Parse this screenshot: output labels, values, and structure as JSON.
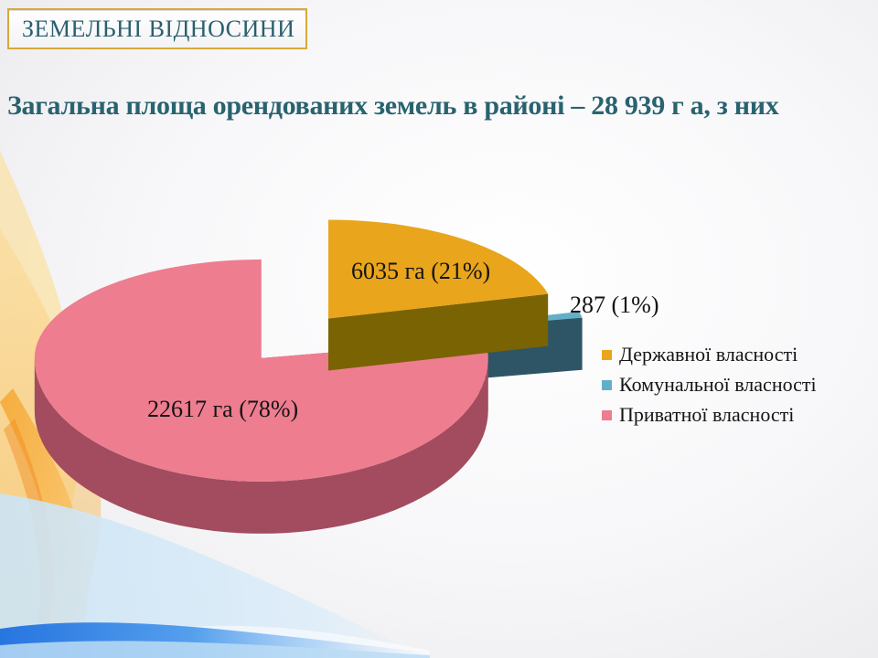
{
  "slide": {
    "badge_label": "ЗЕМЕЛЬНІ ВІДНОСИНИ",
    "heading": "Загальна площа орендованих земель в районі – 28 939 г а, з них"
  },
  "chart_data": {
    "type": "pie",
    "style": "3d-exploded",
    "unit": "га",
    "total_label": "28 939 га",
    "legend_position": "right",
    "slices": [
      {
        "key": "state",
        "label": "Державної власності",
        "value": 6035,
        "percent": 21,
        "data_label": "6035 га (21%)",
        "color": "#E9A51C",
        "side_color": "#7A6303"
      },
      {
        "key": "communal",
        "label": "Комунальної власності",
        "value": 287,
        "percent": 1,
        "data_label": "287 (1%)",
        "color": "#64AFC8",
        "side_color": "#2E5565"
      },
      {
        "key": "private",
        "label": "Приватної власності",
        "value": 22617,
        "percent": 78,
        "data_label": "22617 га (78%)",
        "color": "#EE7D90",
        "side_color": "#A34C5F"
      }
    ]
  },
  "style_colors": {
    "badge_border": "#D9A83A",
    "badge_text": "#2A5F6E",
    "heading_text": "#29636F",
    "decor_orange": "#F6A62B",
    "decor_pale_yellow": "#FAE2A8",
    "decor_blue": "#2776E4",
    "decor_pale_blue": "#CBE4F6"
  }
}
